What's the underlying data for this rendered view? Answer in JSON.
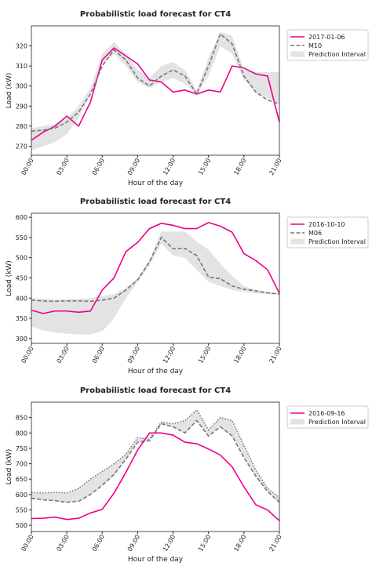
{
  "chart_data": [
    {
      "type": "line",
      "title": "Probabilistic load forecast for CT4",
      "xlabel": "Hour of the day",
      "ylabel": "Load (kW)",
      "x": [
        0,
        1,
        2,
        3,
        4,
        5,
        6,
        7,
        8,
        9,
        10,
        11,
        12,
        13,
        14,
        15,
        16,
        17,
        18,
        19,
        20,
        21
      ],
      "xlim": [
        0,
        21
      ],
      "xticks": [
        {
          "value": 0,
          "label": "00:00"
        },
        {
          "value": 3,
          "label": "03:00"
        },
        {
          "value": 6,
          "label": "06:00"
        },
        {
          "value": 9,
          "label": "09:00"
        },
        {
          "value": 12,
          "label": "12:00"
        },
        {
          "value": 15,
          "label": "15:00"
        },
        {
          "value": 18,
          "label": "18:00"
        },
        {
          "value": 21,
          "label": "21:00"
        }
      ],
      "ylim": [
        265.5,
        330
      ],
      "yticks": [
        270,
        280,
        290,
        300,
        310,
        320
      ],
      "series": [
        {
          "name": "2017-01-06",
          "color": "#ec008c",
          "dashed": false,
          "values": [
            273,
            277,
            280,
            285,
            280,
            292,
            313,
            319,
            315,
            311,
            303,
            302,
            297,
            298,
            296,
            298,
            297,
            310,
            309,
            306,
            305,
            282
          ]
        },
        {
          "name": "M10",
          "color": "#777777",
          "dashed": true,
          "values": [
            277.5,
            278,
            279,
            282,
            287,
            296,
            310,
            318,
            313,
            304,
            300,
            305,
            308,
            305,
            296,
            310,
            326,
            321,
            305,
            297,
            293,
            291
          ]
        }
      ],
      "interval": {
        "name": "Prediction Interval",
        "color": "#e3e3e3",
        "edges": "none",
        "lower": [
          268,
          270,
          272,
          276,
          284,
          296,
          311,
          316,
          310,
          302,
          299,
          302,
          304,
          301,
          296,
          305,
          320,
          316,
          303,
          297,
          294,
          291
        ],
        "upper": [
          279,
          280,
          281,
          284,
          290,
          299,
          316,
          322,
          316,
          308,
          304,
          310,
          312,
          308,
          298,
          314,
          327,
          325,
          308,
          307,
          307,
          307
        ]
      }
    },
    {
      "type": "line",
      "title": "Probabilistic load forecast for CT4",
      "xlabel": "Hour of the day",
      "ylabel": "Load (kW)",
      "x": [
        0,
        1,
        2,
        3,
        4,
        5,
        6,
        7,
        8,
        9,
        10,
        11,
        12,
        13,
        14,
        15,
        16,
        17,
        18,
        19,
        20,
        21
      ],
      "xlim": [
        0,
        21
      ],
      "xticks": [
        {
          "value": 0,
          "label": "00:00"
        },
        {
          "value": 3,
          "label": "03:00"
        },
        {
          "value": 6,
          "label": "06:00"
        },
        {
          "value": 9,
          "label": "09:00"
        },
        {
          "value": 12,
          "label": "12:00"
        },
        {
          "value": 15,
          "label": "15:00"
        },
        {
          "value": 18,
          "label": "18:00"
        },
        {
          "value": 21,
          "label": "21:00"
        }
      ],
      "ylim": [
        288,
        610
      ],
      "yticks": [
        300,
        350,
        400,
        450,
        500,
        550,
        600
      ],
      "series": [
        {
          "name": "2016-10-10",
          "color": "#ec008c",
          "dashed": false,
          "values": [
            370,
            362,
            368,
            368,
            365,
            368,
            420,
            450,
            515,
            538,
            572,
            585,
            580,
            572,
            572,
            587,
            578,
            563,
            510,
            493,
            470,
            412
          ]
        },
        {
          "name": "M06",
          "color": "#777777",
          "dashed": true,
          "values": [
            395,
            393,
            392,
            393,
            393,
            392,
            395,
            400,
            420,
            445,
            490,
            550,
            522,
            523,
            505,
            452,
            448,
            430,
            422,
            418,
            413,
            410
          ]
        }
      ],
      "interval": {
        "name": "Prediction Interval",
        "color": "#e3e3e3",
        "edges": "none",
        "lower": [
          330,
          320,
          315,
          312,
          310,
          310,
          318,
          350,
          400,
          440,
          480,
          535,
          505,
          500,
          470,
          440,
          430,
          420,
          415,
          412,
          410,
          408
        ],
        "upper": [
          400,
          398,
          397,
          397,
          398,
          400,
          405,
          410,
          425,
          450,
          495,
          565,
          565,
          565,
          540,
          520,
          485,
          455,
          430,
          420,
          415,
          412
        ]
      }
    },
    {
      "type": "line",
      "title": "Probabilistic load forecast for CT4",
      "xlabel": "Hour of the day",
      "ylabel": "Load (kW)",
      "x": [
        0,
        1,
        2,
        3,
        4,
        5,
        6,
        7,
        8,
        9,
        10,
        11,
        12,
        13,
        14,
        15,
        16,
        17,
        18,
        19,
        20,
        21
      ],
      "xlim": [
        0,
        21
      ],
      "xticks": [
        {
          "value": 0,
          "label": "00:00"
        },
        {
          "value": 3,
          "label": "03:00"
        },
        {
          "value": 6,
          "label": "06:00"
        },
        {
          "value": 9,
          "label": "09:00"
        },
        {
          "value": 12,
          "label": "12:00"
        },
        {
          "value": 15,
          "label": "15:00"
        },
        {
          "value": 18,
          "label": "18:00"
        },
        {
          "value": 21,
          "label": "21:00"
        }
      ],
      "ylim": [
        480,
        900
      ],
      "yticks": [
        500,
        550,
        600,
        650,
        700,
        750,
        800,
        850
      ],
      "series": [
        {
          "name": "2016-09-16",
          "color": "#ec008c",
          "dashed": false,
          "values": [
            522,
            523,
            527,
            519,
            523,
            540,
            552,
            605,
            672,
            745,
            800,
            800,
            793,
            770,
            765,
            748,
            728,
            690,
            625,
            567,
            550,
            515
          ]
        }
      ],
      "interval": {
        "name": "Prediction Interval",
        "color": "#e3e3e3",
        "edges": "dashed",
        "lower": [
          588,
          583,
          580,
          575,
          578,
          600,
          630,
          665,
          715,
          770,
          775,
          830,
          820,
          800,
          840,
          790,
          820,
          790,
          720,
          660,
          610,
          575
        ],
        "upper": [
          607,
          605,
          607,
          605,
          620,
          650,
          675,
          700,
          730,
          785,
          780,
          835,
          830,
          840,
          875,
          810,
          850,
          840,
          760,
          680,
          620,
          590
        ]
      }
    }
  ]
}
